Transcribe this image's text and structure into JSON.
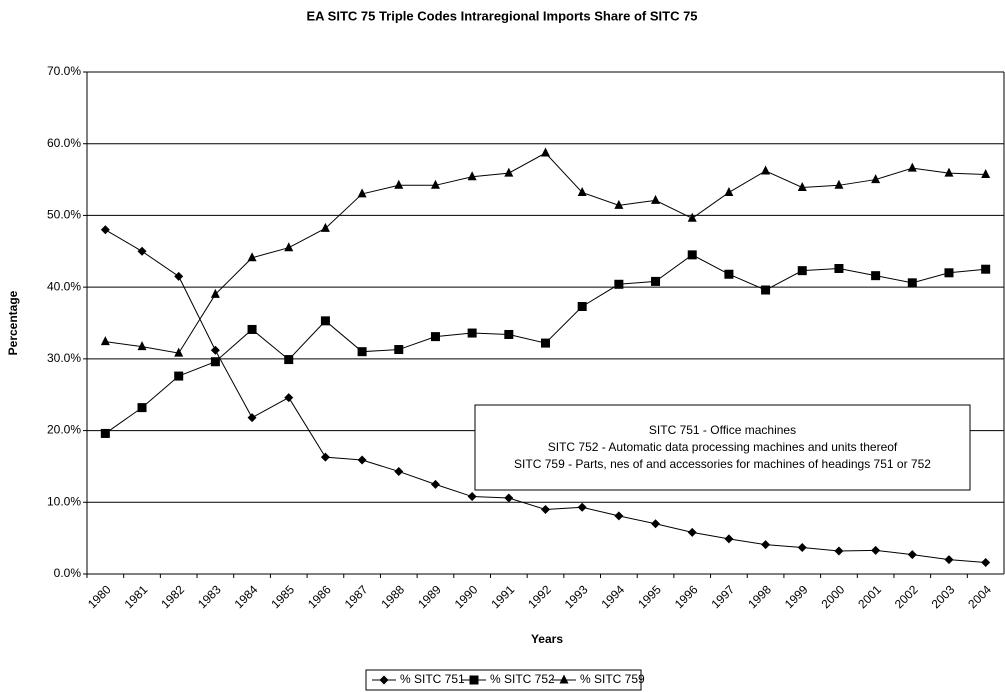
{
  "chart_data": {
    "type": "line",
    "title": "EA SITC 75 Triple Codes Intraregional Imports Share of SITC 75",
    "x_label": "Years",
    "y_label": "Percentage",
    "categories": [
      "1980",
      "1981",
      "1982",
      "1983",
      "1984",
      "1985",
      "1986",
      "1987",
      "1988",
      "1989",
      "1990",
      "1991",
      "1992",
      "1993",
      "1994",
      "1995",
      "1996",
      "1997",
      "1998",
      "1999",
      "2000",
      "2001",
      "2002",
      "2003",
      "2004"
    ],
    "series": [
      {
        "name": "% SITC 751",
        "color": "#000000",
        "marker": "diamond",
        "values": [
          48.0,
          45.0,
          41.5,
          31.2,
          21.8,
          24.6,
          16.3,
          15.9,
          14.3,
          12.5,
          10.8,
          10.6,
          9.0,
          9.3,
          8.1,
          7.0,
          5.8,
          4.9,
          4.1,
          3.7,
          3.2,
          3.3,
          2.7,
          2.0,
          1.6
        ]
      },
      {
        "name": "% SITC 752",
        "color": "#000000",
        "marker": "square",
        "values": [
          19.6,
          23.2,
          27.6,
          29.6,
          34.1,
          29.9,
          35.3,
          31.0,
          31.3,
          33.1,
          33.6,
          33.4,
          32.2,
          37.3,
          40.4,
          40.8,
          44.5,
          41.8,
          39.6,
          42.3,
          42.6,
          41.6,
          40.6,
          42.0,
          42.5
        ]
      },
      {
        "name": "% SITC 759",
        "color": "#000000",
        "marker": "triangle",
        "values": [
          32.4,
          31.7,
          30.8,
          39.0,
          44.1,
          45.5,
          48.2,
          53.0,
          54.2,
          54.2,
          55.4,
          55.9,
          58.7,
          53.2,
          51.4,
          52.1,
          49.6,
          53.2,
          56.2,
          53.9,
          54.2,
          55.0,
          56.6,
          55.9,
          55.7
        ]
      }
    ],
    "ylim": [
      0,
      70
    ],
    "yticks": [
      {
        "value": 0,
        "label": "0.0%"
      },
      {
        "value": 10,
        "label": "10.0%"
      },
      {
        "value": 20,
        "label": "20.0%"
      },
      {
        "value": 30,
        "label": "30.0%"
      },
      {
        "value": 40,
        "label": "40.0%"
      },
      {
        "value": 50,
        "label": "50.0%"
      },
      {
        "value": 60,
        "label": "60.0%"
      },
      {
        "value": 70,
        "label": "70.0%"
      }
    ],
    "grid": true,
    "annotations": [
      "SITC 751 - Office machines",
      "SITC 752 - Automatic data processing machines and units thereof",
      "SITC 759 - Parts, nes of and accessories for machines of headings 751 or 752"
    ],
    "legend": "bottom"
  }
}
